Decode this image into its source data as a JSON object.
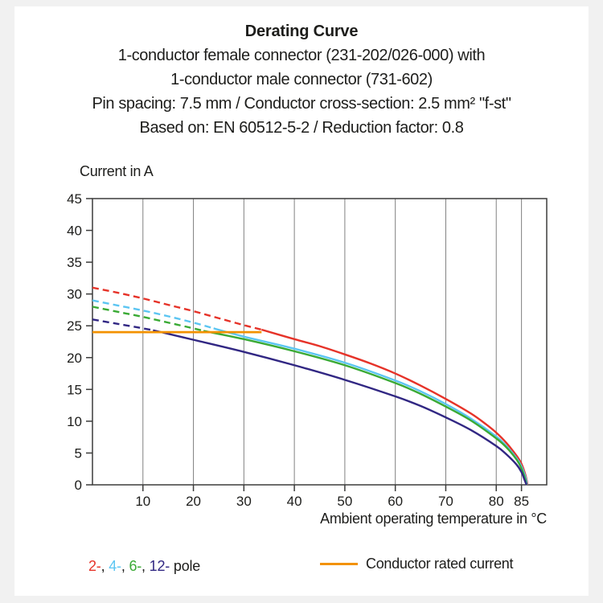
{
  "header": {
    "title": "Derating Curve",
    "subtitle_lines": [
      "1-conductor female connector (231-202/026-000) with",
      "1-conductor male connector (731-602)",
      "Pin spacing: 7.5 mm / Conductor cross-section: 2.5 mm² \"f-st\"",
      "Based on: EN 60512-5-2 / Reduction factor: 0.8"
    ]
  },
  "chart_data": {
    "type": "line",
    "title": "Derating Curve",
    "ylabel": "Current in A",
    "xlabel": "Ambient operating temperature in °C",
    "xlim": [
      0,
      90
    ],
    "ylim": [
      0,
      45
    ],
    "x_ticks": [
      10,
      20,
      30,
      40,
      50,
      60,
      70,
      80,
      85
    ],
    "y_ticks": [
      0,
      5,
      10,
      15,
      20,
      25,
      30,
      35,
      40,
      45
    ],
    "grid": "vertical-only",
    "grid_color": "#808080",
    "frame_color": "#3c3c3b",
    "series": [
      {
        "name": "2-pole",
        "color": "#e63329",
        "dashed": [
          [
            0,
            31
          ],
          [
            5,
            30.2
          ],
          [
            10,
            29.3
          ],
          [
            15,
            28.3
          ],
          [
            20,
            27.3
          ],
          [
            25,
            26.2
          ],
          [
            30,
            25.1
          ],
          [
            33.5,
            24.4
          ]
        ],
        "solid": [
          [
            33.5,
            24.4
          ],
          [
            40,
            22.9
          ],
          [
            45,
            21.8
          ],
          [
            50,
            20.5
          ],
          [
            55,
            19.1
          ],
          [
            60,
            17.5
          ],
          [
            65,
            15.6
          ],
          [
            70,
            13.5
          ],
          [
            75,
            11.2
          ],
          [
            78,
            9.5
          ],
          [
            80,
            8.2
          ],
          [
            82,
            6.6
          ],
          [
            84,
            4.6
          ],
          [
            85,
            3.3
          ],
          [
            85.8,
            1.5
          ],
          [
            86.2,
            0
          ]
        ]
      },
      {
        "name": "4-pole",
        "color": "#5bc5f2",
        "dashed": [
          [
            0,
            29
          ],
          [
            5,
            28.2
          ],
          [
            10,
            27.4
          ],
          [
            15,
            26.5
          ],
          [
            20,
            25.5
          ],
          [
            24,
            24.6
          ]
        ],
        "solid": [
          [
            24,
            24.6
          ],
          [
            30,
            23.3
          ],
          [
            40,
            21.4
          ],
          [
            50,
            19.2
          ],
          [
            60,
            16.4
          ],
          [
            65,
            14.7
          ],
          [
            70,
            12.7
          ],
          [
            75,
            10.4
          ],
          [
            80,
            7.6
          ],
          [
            82,
            6.1
          ],
          [
            84,
            4.2
          ],
          [
            85,
            2.9
          ],
          [
            85.8,
            1.2
          ],
          [
            86.1,
            0
          ]
        ]
      },
      {
        "name": "6-pole",
        "color": "#3aaa35",
        "dashed": [
          [
            0,
            28
          ],
          [
            5,
            27.2
          ],
          [
            10,
            26.4
          ],
          [
            15,
            25.5
          ],
          [
            20,
            24.6
          ],
          [
            22,
            24.2
          ]
        ],
        "solid": [
          [
            22,
            24.2
          ],
          [
            30,
            22.9
          ],
          [
            40,
            21.0
          ],
          [
            50,
            18.8
          ],
          [
            60,
            16.0
          ],
          [
            65,
            14.3
          ],
          [
            70,
            12.3
          ],
          [
            75,
            10.1
          ],
          [
            80,
            7.3
          ],
          [
            82,
            5.9
          ],
          [
            84,
            4.0
          ],
          [
            85,
            2.6
          ],
          [
            85.7,
            1.0
          ],
          [
            86,
            0
          ]
        ]
      },
      {
        "name": "12-pole",
        "color": "#312783",
        "dashed": [
          [
            0,
            26
          ],
          [
            5,
            25.3
          ],
          [
            10,
            24.6
          ],
          [
            12,
            24.3
          ]
        ],
        "solid": [
          [
            12,
            24.3
          ],
          [
            20,
            22.8
          ],
          [
            30,
            20.9
          ],
          [
            40,
            18.8
          ],
          [
            50,
            16.5
          ],
          [
            60,
            13.9
          ],
          [
            65,
            12.4
          ],
          [
            70,
            10.6
          ],
          [
            75,
            8.6
          ],
          [
            80,
            6.1
          ],
          [
            82,
            4.8
          ],
          [
            84,
            3.2
          ],
          [
            85,
            2.0
          ],
          [
            85.6,
            0.8
          ],
          [
            86,
            0
          ]
        ]
      }
    ],
    "rated_current": {
      "name": "Conductor rated current",
      "color": "#f39200",
      "value": 24,
      "x_range": [
        0,
        33.5
      ]
    }
  },
  "legend": {
    "pole_items": [
      {
        "label": "2-",
        "color": "#e63329"
      },
      {
        "label": "4-",
        "color": "#5bc5f2"
      },
      {
        "label": "6-",
        "color": "#3aaa35"
      },
      {
        "label": "12-",
        "color": "#312783"
      }
    ],
    "separator": ", ",
    "pole_suffix": "pole",
    "rated_label": "Conductor rated current"
  }
}
